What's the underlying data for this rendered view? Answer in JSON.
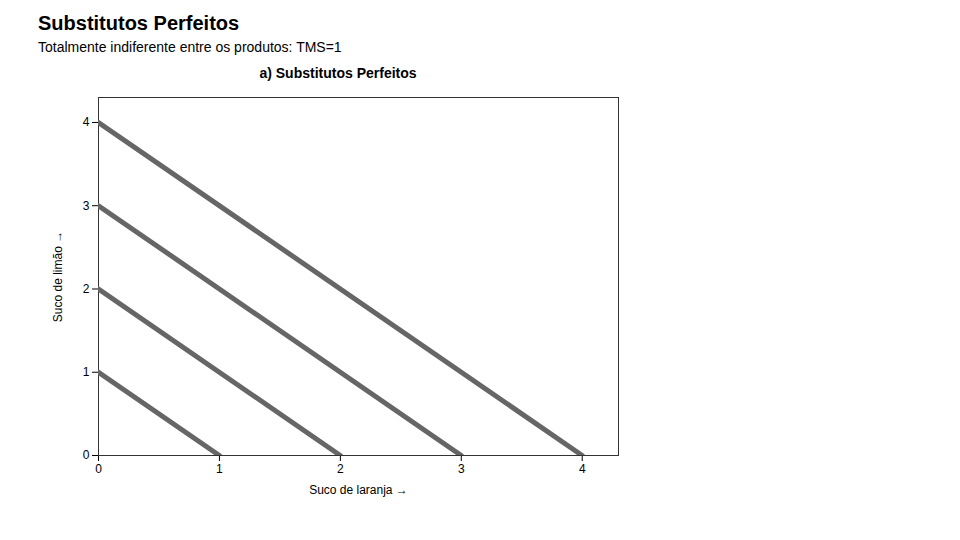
{
  "chart_data": {
    "type": "line",
    "title": "Substitutos Perfeitos",
    "subtitle": "Totalmente indiferente entre os produtos: TMS=1",
    "annotations": [
      {
        "text": "a) Substitutos Perfeitos"
      }
    ],
    "xlabel": "Suco de laranja",
    "ylabel": "Suco de limão",
    "xlim": [
      0,
      4.3
    ],
    "ylim": [
      0,
      4.3
    ],
    "xticks": [
      0,
      1,
      2,
      3,
      4
    ],
    "yticks": [
      0,
      1,
      2,
      3,
      4
    ],
    "grid": false,
    "color": "#666666",
    "series": [
      {
        "x": [
          0,
          1
        ],
        "values": [
          1,
          0
        ]
      },
      {
        "x": [
          0,
          2
        ],
        "values": [
          2,
          0
        ]
      },
      {
        "x": [
          0,
          3
        ],
        "values": [
          3,
          0
        ]
      },
      {
        "x": [
          0,
          4
        ],
        "values": [
          4,
          0
        ]
      }
    ]
  }
}
